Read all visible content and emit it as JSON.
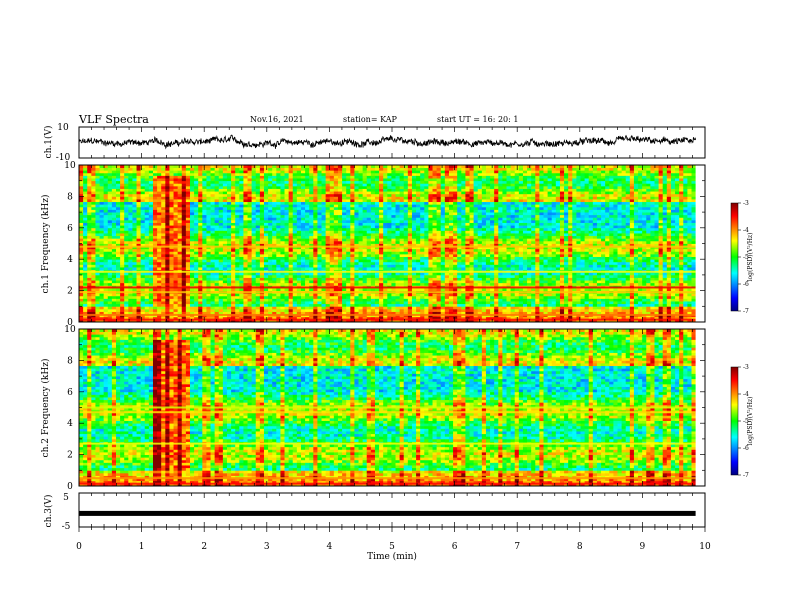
{
  "header": {
    "title": "VLF Spectra",
    "date": "Nov.16, 2021",
    "station": "station= KAP",
    "start": "start  UT =   16: 20: 1"
  },
  "chart_data": [
    {
      "type": "line",
      "panel": "ch1-waveform",
      "ylabel": "ch.1(V)",
      "ylim": [
        -10,
        10
      ],
      "yticks": [
        "10",
        "-10"
      ],
      "xlim": [
        0,
        10
      ],
      "x_range": [
        0,
        9.85
      ],
      "baseline": 0,
      "amplitude": 3.5
    },
    {
      "type": "heatmap",
      "panel": "ch1-spectrogram",
      "ylabel": "ch.1 Frequency (kHz)",
      "ylim": [
        0,
        10
      ],
      "yticks": [
        "0",
        "2",
        "4",
        "6",
        "8",
        "10"
      ],
      "xlim": [
        0,
        9.85
      ],
      "burst_interval_min": [
        1.2,
        1.75
      ],
      "bands": [
        {
          "f": 0.15,
          "level": -3.5
        },
        {
          "f": 0.45,
          "level": -3.9
        },
        {
          "f": 1.9,
          "level": -4.2
        },
        {
          "f": 2.2,
          "level": -3.4
        },
        {
          "f": 3.2,
          "level": -4.4
        },
        {
          "f": 4.8,
          "level": -4.2
        }
      ],
      "colorbar": {
        "label": "log(PSD)(V²/Hz)",
        "range": [
          -7,
          -3
        ],
        "ticks": [
          "-3",
          "-4",
          "-5",
          "-6",
          "-7"
        ]
      }
    },
    {
      "type": "heatmap",
      "panel": "ch2-spectrogram",
      "ylabel": "ch.2 Frequency (kHz)",
      "ylim": [
        0,
        10
      ],
      "yticks": [
        "0",
        "2",
        "4",
        "6",
        "8",
        "10"
      ],
      "xlim": [
        0,
        9.85
      ],
      "burst_interval_min": [
        1.2,
        1.75
      ],
      "bands": [
        {
          "f": 0.15,
          "level": -3.5
        },
        {
          "f": 0.5,
          "level": -4.0
        },
        {
          "f": 2.7,
          "level": -4.4
        },
        {
          "f": 4.7,
          "level": -4.3
        },
        {
          "f": 5.0,
          "level": -4.5
        }
      ],
      "colorbar": {
        "label": "log(PSD)(V²/Hz)",
        "range": [
          -7,
          -3
        ],
        "ticks": [
          "-3",
          "-4",
          "-5",
          "-6",
          "-7"
        ]
      }
    },
    {
      "type": "line",
      "panel": "ch3-waveform",
      "ylabel": "ch.3(V)",
      "ylim": [
        -5,
        5
      ],
      "yticks": [
        "5",
        "-5"
      ],
      "xlim": [
        0,
        10
      ],
      "x_range": [
        0,
        9.85
      ],
      "value": -1
    }
  ],
  "xaxis": {
    "label": "Time  (min)",
    "ticks": [
      "0",
      "1",
      "2",
      "3",
      "4",
      "5",
      "6",
      "7",
      "8",
      "9",
      "10"
    ]
  }
}
